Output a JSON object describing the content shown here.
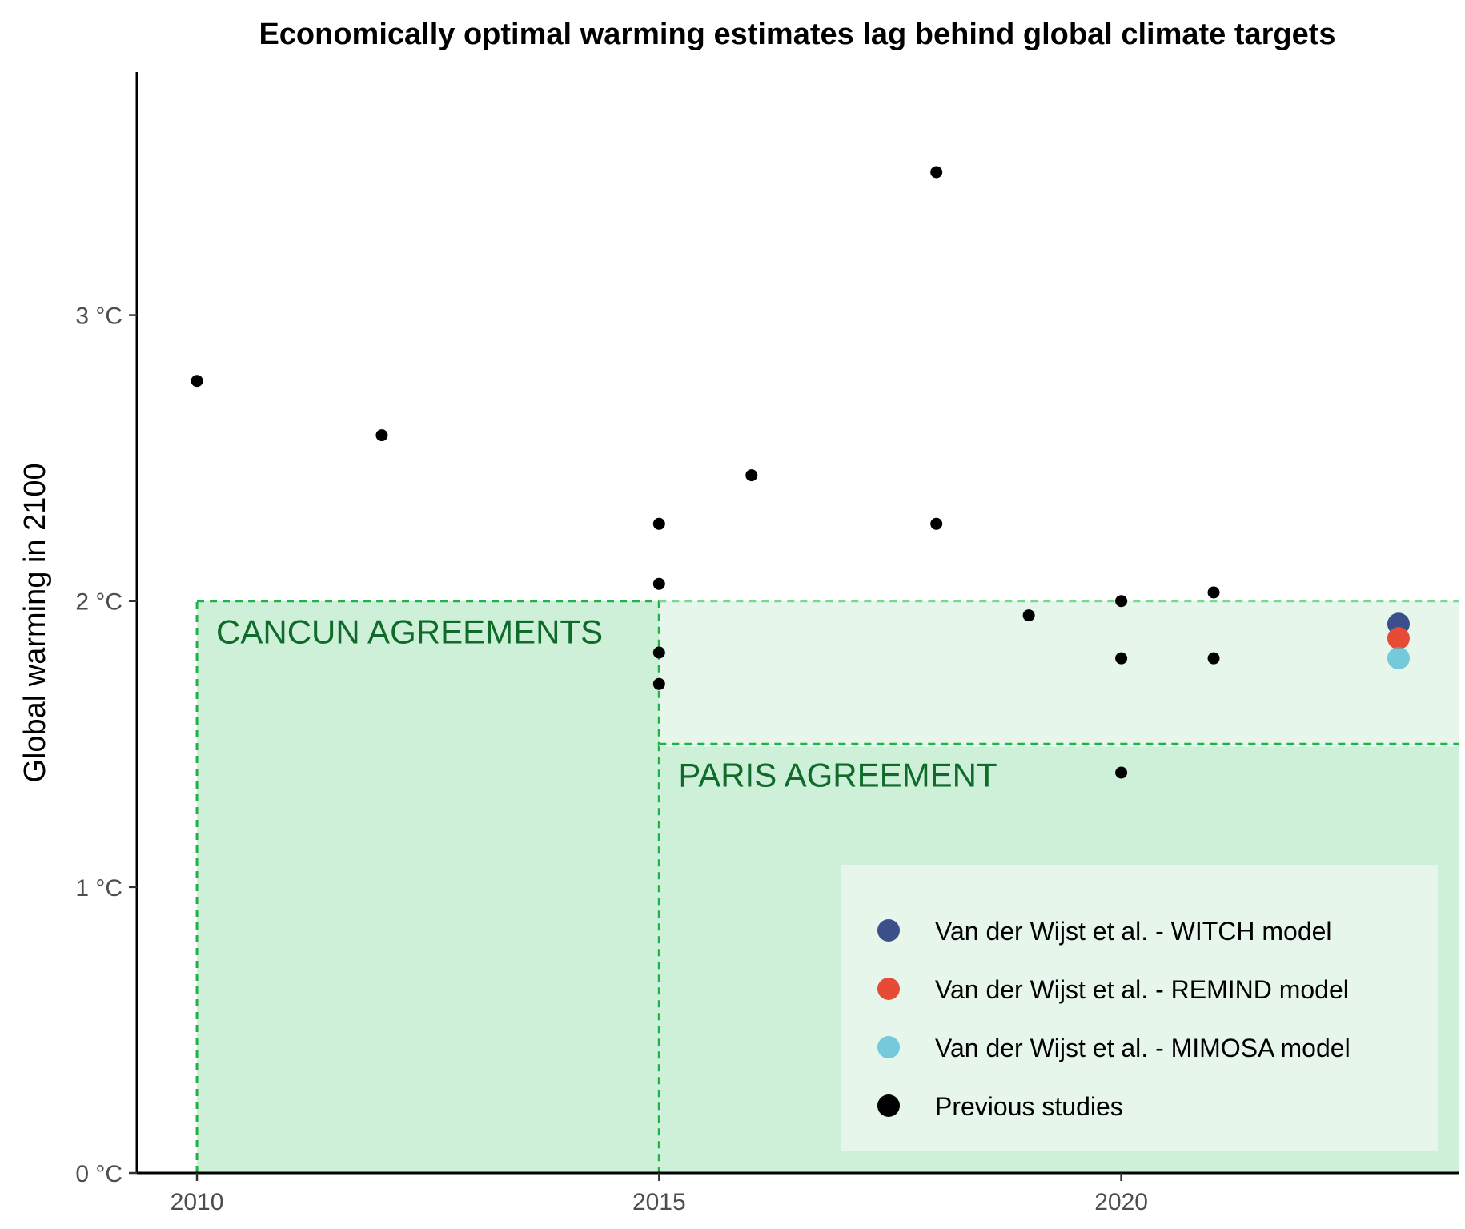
{
  "chart_data": {
    "type": "scatter",
    "title": "Economically optimal warming estimates lag behind global climate targets",
    "xlabel": "",
    "ylabel": "Global warming in 2100",
    "xlim": [
      2009.35,
      2023.65
    ],
    "ylim": [
      0,
      3.85
    ],
    "x_ticks": [
      {
        "value": 2010,
        "label": "2010"
      },
      {
        "value": 2015,
        "label": "2015"
      },
      {
        "value": 2020,
        "label": "2020"
      }
    ],
    "y_ticks": [
      {
        "value": 0,
        "label": "0 °C"
      },
      {
        "value": 1,
        "label": "1 °C"
      },
      {
        "value": 2,
        "label": "2 °C"
      },
      {
        "value": 3,
        "label": "3 °C"
      }
    ],
    "grid": false,
    "regions": [
      {
        "name": "cancun",
        "label": "CANCUN AGREEMENTS",
        "x_start": 2010,
        "x_end": 2015,
        "y_max": 2.0
      },
      {
        "name": "cancun-extension",
        "label": "",
        "x_start": 2015,
        "x_end": 2023.65,
        "y_max": 2.0
      },
      {
        "name": "paris",
        "label": "PARIS AGREEMENT",
        "x_start": 2015,
        "x_end": 2023.65,
        "y_max": 1.5
      }
    ],
    "series": [
      {
        "name": "Previous studies",
        "color": "#000000",
        "points": [
          {
            "x": 2010,
            "y": 2.77
          },
          {
            "x": 2012,
            "y": 2.58
          },
          {
            "x": 2015,
            "y": 2.27
          },
          {
            "x": 2015,
            "y": 2.06
          },
          {
            "x": 2015,
            "y": 1.82
          },
          {
            "x": 2015,
            "y": 1.71
          },
          {
            "x": 2016,
            "y": 2.44
          },
          {
            "x": 2018,
            "y": 3.5
          },
          {
            "x": 2018,
            "y": 2.27
          },
          {
            "x": 2019,
            "y": 1.95
          },
          {
            "x": 2020,
            "y": 2.0
          },
          {
            "x": 2020,
            "y": 1.8
          },
          {
            "x": 2020,
            "y": 1.4
          },
          {
            "x": 2021,
            "y": 2.03
          },
          {
            "x": 2021,
            "y": 1.8
          }
        ]
      },
      {
        "name": "Van der Wijst et al. - WITCH model",
        "color": "#3b4f8a",
        "points": [
          {
            "x": 2023,
            "y": 1.92
          }
        ]
      },
      {
        "name": "Van der Wijst et al. - REMIND model",
        "color": "#e64b35",
        "points": [
          {
            "x": 2023,
            "y": 1.87
          }
        ]
      },
      {
        "name": "Van der Wijst et al. - MIMOSA model",
        "color": "#4dbbd5",
        "points": [
          {
            "x": 2023,
            "y": 1.8
          }
        ]
      }
    ],
    "legend": {
      "placement": "bottom-right",
      "entries": [
        {
          "label": "Van der Wijst et al. - WITCH model",
          "color": "#3b4f8a"
        },
        {
          "label": "Van der Wijst et al. - REMIND model",
          "color": "#e64b35"
        },
        {
          "label": "Van der Wijst et al. - MIMOSA model",
          "color": "#4dbbd5"
        },
        {
          "label": "Previous studies",
          "color": "#000000"
        }
      ]
    },
    "colors": {
      "region_fill": "#ceefd8",
      "region_fill_light": "#e6f6ea",
      "region_border": "#1db346",
      "region_border_light": "#76d990",
      "region_label": "#0f6b2a",
      "legend_background": "#e6f6ea"
    }
  }
}
